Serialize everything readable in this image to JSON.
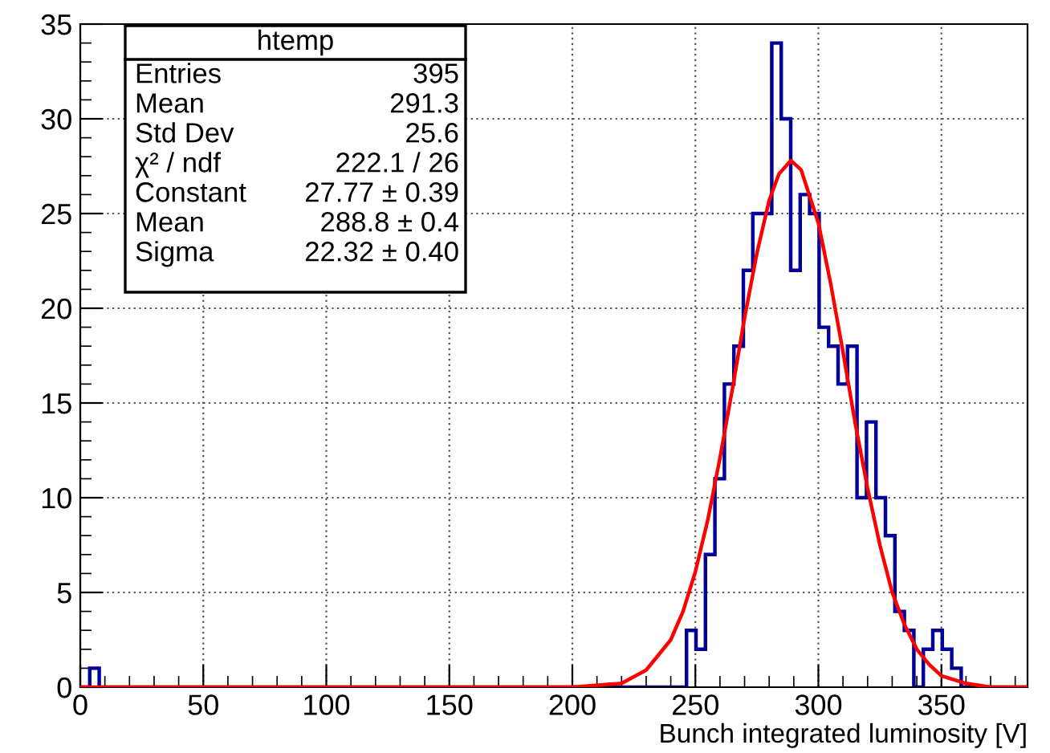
{
  "chart_data": {
    "type": "histogram",
    "xlabel": "Bunch integrated luminosity [V]",
    "bins": [
      0,
      3.85,
      7.7,
      11.55,
      15.4,
      19.25,
      23.1,
      26.95,
      30.8,
      34.65,
      38.5,
      42.35,
      46.2,
      50.05,
      53.9,
      57.75,
      61.6,
      65.45,
      69.3,
      73.15,
      77,
      80.85,
      84.7,
      88.55,
      92.4,
      96.25,
      100.1,
      103.95,
      107.8,
      111.65,
      115.5,
      119.35,
      123.2,
      127.05,
      130.9,
      134.75,
      138.6,
      142.45,
      146.3,
      150.15,
      154,
      157.85,
      161.7,
      165.55,
      169.4,
      173.25,
      177.1,
      180.95,
      184.8,
      188.65,
      192.5,
      196.35,
      200.2,
      204.05,
      207.9,
      211.75,
      215.6,
      219.45,
      223.3,
      227.15,
      231,
      234.85,
      238.7,
      242.55,
      246.4,
      250.25,
      254.1,
      257.95,
      261.8,
      265.65,
      269.5,
      273.35,
      277.2,
      281.05,
      284.9,
      288.75,
      292.6,
      296.45,
      300.3,
      304.15,
      308,
      311.85,
      315.7,
      319.55,
      323.4,
      327.25,
      331.1,
      334.95,
      338.8,
      342.65,
      346.5,
      350.35,
      354.2,
      358.05,
      361.9,
      365.75,
      369.6,
      373.45,
      377.3,
      381.15,
      385
    ],
    "values": [
      0,
      1,
      0,
      0,
      0,
      0,
      0,
      0,
      0,
      0,
      0,
      0,
      0,
      0,
      0,
      0,
      0,
      0,
      0,
      0,
      0,
      0,
      0,
      0,
      0,
      0,
      0,
      0,
      0,
      0,
      0,
      0,
      0,
      0,
      0,
      0,
      0,
      0,
      0,
      0,
      0,
      0,
      0,
      0,
      0,
      0,
      0,
      0,
      0,
      0,
      0,
      0,
      0,
      0,
      0,
      0,
      0,
      0,
      0,
      0,
      0,
      0,
      0,
      0,
      3,
      2,
      7,
      11,
      16,
      18,
      22,
      25,
      25,
      34,
      30,
      22,
      26,
      25,
      19,
      18,
      16,
      18,
      10,
      14,
      10,
      8,
      4,
      3,
      0,
      2,
      3,
      2,
      1,
      0,
      0,
      0,
      0,
      0,
      0,
      0
    ],
    "color": "#000099",
    "series": [
      {
        "type": "line",
        "color": "#ff0000",
        "x": [
          0,
          150,
          200,
          220,
          230,
          240,
          245,
          250,
          255,
          260,
          265,
          270,
          275,
          280,
          284,
          288.8,
          293,
          300,
          305,
          310,
          315,
          320,
          325,
          330,
          335,
          340,
          345,
          350,
          360,
          370,
          385
        ],
        "values": [
          0,
          0,
          0,
          0.2,
          0.9,
          2.5,
          4,
          6.1,
          8.8,
          12.1,
          15.7,
          19.5,
          22.9,
          25.7,
          27.1,
          27.8,
          27.3,
          24.5,
          21.3,
          17.7,
          13.9,
          10.5,
          7.5,
          5,
          3.3,
          2,
          1.2,
          0.6,
          0.2,
          0,
          0
        ]
      }
    ],
    "xlim": [
      0,
      385
    ],
    "ylim": [
      0,
      35
    ],
    "xticks": [
      0,
      50,
      100,
      150,
      200,
      250,
      300,
      350
    ],
    "yticks": [
      0,
      5,
      10,
      15,
      20,
      25,
      30,
      35
    ],
    "grid": true,
    "legend": false,
    "marker": "none",
    "line_style": "solid",
    "annotations": [
      "htemp",
      "Entries",
      "395",
      "Mean",
      "291.3",
      "Std Dev",
      "25.6",
      "χ² / ndf",
      "222.1 / 26",
      "Constant",
      "27.77 ± 0.39",
      "Mean",
      "288.8 ± 0.4",
      "Sigma",
      "22.32 ± 0.40"
    ]
  }
}
